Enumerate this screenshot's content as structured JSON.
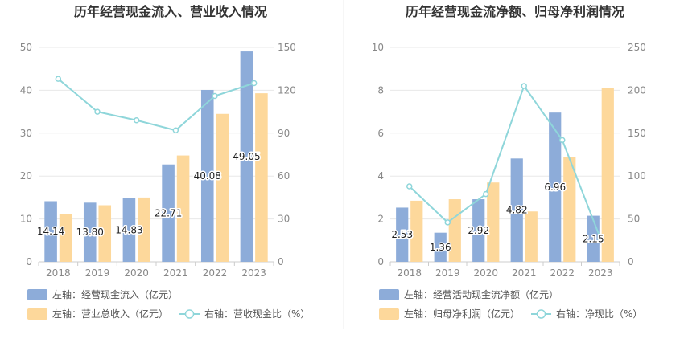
{
  "chart_data": [
    {
      "type": "bar",
      "title": "历年经营现金流入、营业收入情况",
      "categories": [
        "2018",
        "2019",
        "2020",
        "2021",
        "2022",
        "2023"
      ],
      "y_left": {
        "ticks": [
          "0",
          "10",
          "20",
          "30",
          "40",
          "50"
        ],
        "ylim": [
          0,
          50
        ]
      },
      "y_right": {
        "ticks": [
          "0",
          "30",
          "60",
          "90",
          "120",
          "150"
        ],
        "ylim": [
          0,
          150
        ]
      },
      "grid": true,
      "legend_position": "bottom-left",
      "series": [
        {
          "name": "左轴：经营现金流入（亿元）",
          "type": "bar",
          "axis": "left",
          "color": "#8dacd9",
          "values": [
            14.14,
            13.8,
            14.83,
            22.71,
            40.08,
            49.05
          ],
          "labels": [
            "14.14",
            "13.80",
            "14.83",
            "22.71",
            "40.08",
            "49.05"
          ]
        },
        {
          "name": "左轴：营业总收入（亿元）",
          "type": "bar",
          "axis": "left",
          "color": "#fdd89b",
          "values": [
            11.2,
            13.2,
            15.0,
            24.8,
            34.5,
            39.3
          ]
        },
        {
          "name": "右轴：营收现金比（%）",
          "type": "line",
          "axis": "right",
          "color": "#8fd6da",
          "values": [
            128,
            105,
            99,
            92,
            116,
            125
          ]
        }
      ]
    },
    {
      "type": "bar",
      "title": "历年经营现金流净额、归母净利润情况",
      "categories": [
        "2018",
        "2019",
        "2020",
        "2021",
        "2022",
        "2023"
      ],
      "y_left": {
        "ticks": [
          "0",
          "2",
          "4",
          "6",
          "8",
          "10"
        ],
        "ylim": [
          0,
          10
        ]
      },
      "y_right": {
        "ticks": [
          "0",
          "50",
          "100",
          "150",
          "200",
          "250"
        ],
        "ylim": [
          0,
          250
        ]
      },
      "grid": true,
      "legend_position": "bottom-left",
      "series": [
        {
          "name": "左轴：经营活动现金流净额（亿元）",
          "type": "bar",
          "axis": "left",
          "color": "#8dacd9",
          "values": [
            2.53,
            1.36,
            2.92,
            4.82,
            6.96,
            2.15
          ],
          "labels": [
            "2.53",
            "1.36",
            "2.92",
            "4.82",
            "6.96",
            "2.15"
          ]
        },
        {
          "name": "左轴：归母净利润（亿元）",
          "type": "bar",
          "axis": "left",
          "color": "#fdd89b",
          "values": [
            2.85,
            2.92,
            3.7,
            2.35,
            4.9,
            8.1
          ]
        },
        {
          "name": "右轴：净现比（%）",
          "type": "line",
          "axis": "right",
          "color": "#8fd6da",
          "values": [
            88,
            46,
            79,
            205,
            142,
            27
          ]
        }
      ]
    }
  ]
}
